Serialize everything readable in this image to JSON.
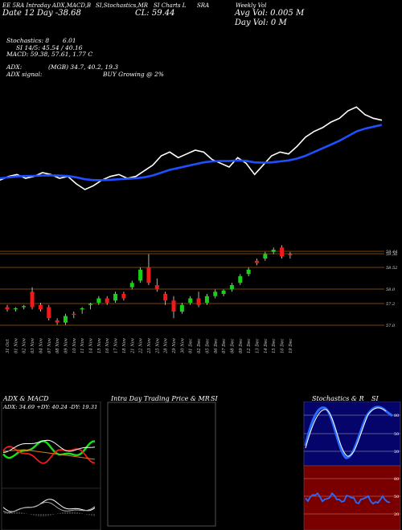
{
  "header": {
    "line1": [
      "EE 5RA Intraday ADX,MACD,B",
      "SI,Stochastics,MR",
      "SI Charts L",
      "SRA",
      "Weekly Vol"
    ],
    "day_info": "Date 12 Day",
    "change": "-38.68",
    "close": "CL: 59.44",
    "avg_vol": "Avg Vol: 0.005",
    "avg_vol_unit": "M",
    "day_vol": "Day Vol: 0",
    "day_vol_unit": "M",
    "stochastics": "Stochastics: 8",
    "stoch_val": "6.01",
    "si": "SI 14/5: 45.54",
    "si_val": "40.16",
    "macd": "MACD: 59.38, 57.61, 1.77 C",
    "adx": "ADX:",
    "adx_vals": "(MGB) 34.7, 40.2, 19.3",
    "adx_signal": "ADX signal:",
    "signal_text": "BUY Growing @ 2%"
  },
  "chart_data": [
    {
      "type": "line",
      "name": "price-overlay",
      "series": [
        {
          "color": "#ffffff",
          "values": [
            58.1,
            58.3,
            58.4,
            58.2,
            58.3,
            58.5,
            58.4,
            58.2,
            58.3,
            57.9,
            57.6,
            57.8,
            58.1,
            58.3,
            58.4,
            58.2,
            58.3,
            58.6,
            58.9,
            59.4,
            59.6,
            59.3,
            59.5,
            59.7,
            59.6,
            59.2,
            59.0,
            58.8,
            59.3,
            59.0,
            58.4,
            58.9,
            59.4,
            59.6,
            59.5,
            59.9,
            60.4,
            60.7,
            60.9,
            61.2,
            61.4,
            61.8,
            62.0,
            61.6,
            61.4,
            61.3
          ]
        },
        {
          "color": "#1f4fff",
          "values": [
            58.2,
            58.25,
            58.3,
            58.32,
            58.33,
            58.35,
            58.36,
            58.34,
            58.32,
            58.25,
            58.15,
            58.1,
            58.1,
            58.12,
            58.15,
            58.17,
            58.2,
            58.25,
            58.35,
            58.5,
            58.65,
            58.75,
            58.85,
            58.95,
            59.05,
            59.1,
            59.12,
            59.12,
            59.15,
            59.13,
            59.05,
            59.03,
            59.05,
            59.1,
            59.15,
            59.25,
            59.4,
            59.6,
            59.8,
            60.0,
            60.2,
            60.45,
            60.7,
            60.85,
            60.95,
            61.05
          ]
        }
      ]
    },
    {
      "type": "candlestick",
      "name": "price",
      "x": [
        "31 Oct",
        "01 Nov",
        "02 Nov",
        "03 Nov",
        "04 Nov",
        "07 Nov",
        "08 Nov",
        "09 Nov",
        "10 Nov",
        "11 Nov",
        "14 Nov",
        "15 Nov",
        "16 Nov",
        "17 Nov",
        "18 Nov",
        "21 Nov",
        "22 Nov",
        "23 Nov",
        "25 Nov",
        "28 Nov",
        "29 Nov",
        "30 Nov",
        "01 Dec",
        "02 Dec",
        "05 Dec",
        "06 Dec",
        "07 Dec",
        "08 Dec",
        "09 Dec",
        "12 Dec",
        "13 Dec",
        "14 Dec",
        "15 Dec",
        "16 Dec",
        "19 Dec"
      ],
      "candles": [
        [
          56.8,
          56.9,
          56.6,
          56.7
        ],
        [
          56.7,
          56.8,
          56.6,
          56.75
        ],
        [
          56.8,
          56.9,
          56.7,
          56.85
        ],
        [
          57.5,
          57.7,
          56.7,
          56.8
        ],
        [
          56.9,
          57.0,
          56.6,
          56.7
        ],
        [
          56.8,
          56.9,
          56.2,
          56.3
        ],
        [
          56.2,
          56.3,
          56.0,
          56.1
        ],
        [
          56.1,
          56.5,
          56.0,
          56.4
        ],
        [
          56.5,
          56.6,
          56.3,
          56.45
        ],
        [
          56.7,
          56.8,
          56.5,
          56.75
        ],
        [
          56.9,
          57.0,
          56.7,
          56.95
        ],
        [
          57.0,
          57.3,
          56.9,
          57.2
        ],
        [
          57.2,
          57.3,
          56.9,
          57.0
        ],
        [
          57.1,
          57.5,
          57.0,
          57.4
        ],
        [
          57.4,
          57.5,
          57.1,
          57.2
        ],
        [
          57.7,
          58.0,
          57.6,
          57.9
        ],
        [
          58.0,
          58.6,
          57.9,
          58.5
        ],
        [
          58.6,
          59.2,
          57.8,
          57.9
        ],
        [
          57.8,
          58.1,
          57.5,
          57.6
        ],
        [
          57.4,
          57.5,
          56.9,
          57.1
        ],
        [
          57.1,
          57.3,
          56.3,
          56.6
        ],
        [
          56.6,
          57.0,
          56.5,
          56.9
        ],
        [
          57.0,
          57.3,
          56.9,
          57.2
        ],
        [
          57.2,
          57.5,
          56.8,
          56.9
        ],
        [
          57.0,
          57.4,
          56.9,
          57.3
        ],
        [
          57.3,
          57.6,
          57.2,
          57.5
        ],
        [
          57.4,
          57.6,
          57.3,
          57.55
        ],
        [
          57.6,
          57.9,
          57.5,
          57.8
        ],
        [
          57.9,
          58.3,
          57.8,
          58.2
        ],
        [
          58.3,
          58.6,
          58.2,
          58.5
        ],
        [
          58.9,
          59.0,
          58.7,
          58.8
        ],
        [
          59.0,
          59.3,
          58.9,
          59.2
        ],
        [
          59.3,
          59.5,
          59.2,
          59.4
        ],
        [
          59.5,
          59.6,
          59.0,
          59.1
        ],
        [
          59.2,
          59.3,
          59.0,
          59.15
        ]
      ],
      "levels": [
        59.44,
        59.36,
        58.52,
        58.0,
        57.2,
        57.0
      ],
      "level_labels": [
        "59.44",
        "59.36",
        "58.52",
        "58.0",
        "57.2",
        "57.0"
      ]
    }
  ],
  "panels": {
    "adx_title": "ADX & MACD",
    "adx_label": "ADX: 34.69 +DY: 40.24 -DY: 19.31",
    "intraday_title": "Intra Day Trading Price & MR",
    "intraday_si": "SI",
    "stoch_title": "Stochastics & R",
    "stoch_si": "SI",
    "stoch_ticks": [
      "80",
      "50",
      "20"
    ],
    "rsi_ticks": [
      "80",
      "50",
      "20"
    ]
  }
}
